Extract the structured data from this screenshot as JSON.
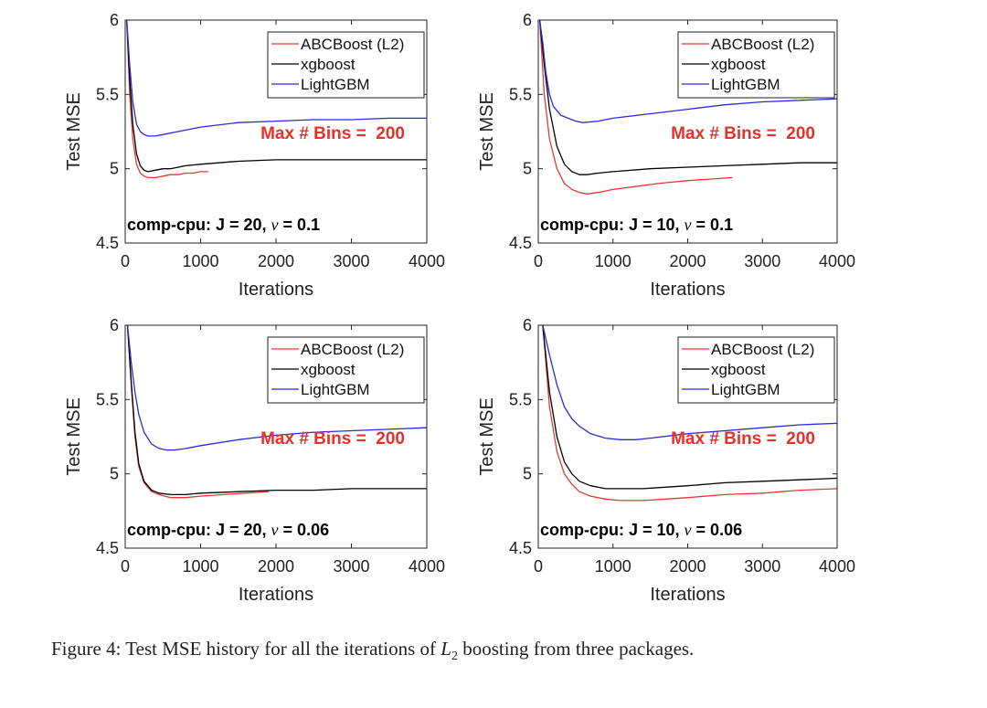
{
  "caption": {
    "label": "Figure 4:",
    "text_before": "Test MSE history for all the iterations of",
    "math_var": "L",
    "math_sub": "2",
    "text_after": "boosting from three packages."
  },
  "colors": {
    "abcboost": "#e03a35",
    "xgboost": "#000000",
    "lightgbm": "#2a2ad8",
    "annotation": "#e8312a"
  },
  "chart_data": [
    {
      "type": "line",
      "id": "top-left",
      "xlabel": "Iterations",
      "ylabel": "Test MSE",
      "xlim": [
        0,
        4000
      ],
      "ylim": [
        4.5,
        6
      ],
      "xticks": [
        0,
        1000,
        2000,
        3000,
        4000
      ],
      "yticks": [
        4.5,
        5,
        5.5,
        6
      ],
      "ytick_labels": [
        "4.5",
        "5",
        "5.5",
        "6"
      ],
      "legend": [
        "ABCBoost (L2)",
        "xgboost",
        "LightGBM"
      ],
      "bins_label": "Max # Bins =  200",
      "config_prefix": "comp-cpu: J = 20, ",
      "config_nu": "ν",
      "config_suffix": " = 0.1",
      "series": [
        {
          "name": "ABCBoost (L2)",
          "x": [
            20,
            60,
            100,
            150,
            200,
            250,
            300,
            400,
            500,
            600,
            700,
            800,
            900,
            1000,
            1100
          ],
          "y": [
            6.0,
            5.5,
            5.2,
            5.03,
            4.97,
            4.95,
            4.94,
            4.94,
            4.95,
            4.96,
            4.96,
            4.97,
            4.97,
            4.98,
            4.98
          ]
        },
        {
          "name": "xgboost",
          "x": [
            20,
            60,
            100,
            150,
            200,
            250,
            300,
            400,
            500,
            600,
            800,
            1000,
            1500,
            2000,
            2500,
            3000,
            3500,
            4000
          ],
          "y": [
            6.0,
            5.6,
            5.3,
            5.1,
            5.02,
            4.99,
            4.98,
            4.99,
            5.0,
            5.0,
            5.02,
            5.03,
            5.05,
            5.06,
            5.06,
            5.06,
            5.06,
            5.06
          ]
        },
        {
          "name": "LightGBM",
          "x": [
            20,
            60,
            100,
            150,
            200,
            250,
            300,
            400,
            500,
            700,
            1000,
            1500,
            2000,
            2500,
            3000,
            3500,
            4000
          ],
          "y": [
            6.0,
            5.7,
            5.45,
            5.3,
            5.25,
            5.23,
            5.22,
            5.22,
            5.23,
            5.25,
            5.28,
            5.31,
            5.32,
            5.33,
            5.33,
            5.34,
            5.34
          ]
        }
      ]
    },
    {
      "type": "line",
      "id": "top-right",
      "xlabel": "Iterations",
      "ylabel": "Test MSE",
      "xlim": [
        0,
        4000
      ],
      "ylim": [
        4.5,
        6
      ],
      "xticks": [
        0,
        1000,
        2000,
        3000,
        4000
      ],
      "yticks": [
        4.5,
        5,
        5.5,
        6
      ],
      "ytick_labels": [
        "4.5",
        "5",
        "5.5",
        "6"
      ],
      "legend": [
        "ABCBoost (L2)",
        "xgboost",
        "LightGBM"
      ],
      "bins_label": "Max # Bins =  200",
      "config_prefix": "comp-cpu: J = 10, ",
      "config_nu": "ν",
      "config_suffix": " = 0.1",
      "series": [
        {
          "name": "ABCBoost (L2)",
          "x": [
            20,
            80,
            150,
            250,
            350,
            450,
            550,
            650,
            800,
            1000,
            1300,
            1600,
            2000,
            2300,
            2600
          ],
          "y": [
            6.0,
            5.5,
            5.2,
            5.0,
            4.9,
            4.86,
            4.84,
            4.83,
            4.84,
            4.86,
            4.88,
            4.9,
            4.92,
            4.93,
            4.94
          ]
        },
        {
          "name": "xgboost",
          "x": [
            20,
            80,
            150,
            250,
            350,
            450,
            550,
            650,
            800,
            1000,
            1500,
            2000,
            2500,
            3000,
            3500,
            4000
          ],
          "y": [
            6.0,
            5.7,
            5.4,
            5.15,
            5.03,
            4.98,
            4.96,
            4.96,
            4.97,
            4.98,
            5.0,
            5.01,
            5.02,
            5.03,
            5.04,
            5.04
          ]
        },
        {
          "name": "LightGBM",
          "x": [
            20,
            60,
            100,
            150,
            200,
            300,
            400,
            500,
            600,
            800,
            1000,
            1500,
            2000,
            2500,
            3000,
            3500,
            4000
          ],
          "y": [
            6.0,
            5.85,
            5.65,
            5.5,
            5.42,
            5.36,
            5.34,
            5.32,
            5.31,
            5.32,
            5.34,
            5.37,
            5.4,
            5.43,
            5.45,
            5.46,
            5.47
          ]
        }
      ]
    },
    {
      "type": "line",
      "id": "bottom-left",
      "xlabel": "Iterations",
      "ylabel": "Test MSE",
      "xlim": [
        0,
        4000
      ],
      "ylim": [
        4.5,
        6
      ],
      "xticks": [
        0,
        1000,
        2000,
        3000,
        4000
      ],
      "yticks": [
        4.5,
        5,
        5.5,
        6
      ],
      "ytick_labels": [
        "4.5",
        "5",
        "5.5",
        "6"
      ],
      "legend": [
        "ABCBoost (L2)",
        "xgboost",
        "LightGBM"
      ],
      "bins_label": "Max # Bins =  200",
      "config_prefix": "comp-cpu: J = 20, ",
      "config_nu": "ν",
      "config_suffix": " = 0.06",
      "series": [
        {
          "name": "ABCBoost (L2)",
          "x": [
            30,
            80,
            130,
            180,
            250,
            350,
            450,
            600,
            800,
            1000,
            1300,
            1600,
            1900
          ],
          "y": [
            6.0,
            5.6,
            5.25,
            5.05,
            4.94,
            4.88,
            4.86,
            4.84,
            4.84,
            4.85,
            4.86,
            4.87,
            4.88
          ]
        },
        {
          "name": "xgboost",
          "x": [
            30,
            80,
            130,
            180,
            250,
            350,
            450,
            600,
            800,
            1000,
            1500,
            2000,
            2500,
            3000,
            3500,
            4000
          ],
          "y": [
            6.0,
            5.62,
            5.28,
            5.07,
            4.95,
            4.89,
            4.87,
            4.86,
            4.86,
            4.87,
            4.88,
            4.89,
            4.89,
            4.9,
            4.9,
            4.9
          ]
        },
        {
          "name": "LightGBM",
          "x": [
            30,
            80,
            130,
            180,
            250,
            350,
            450,
            550,
            650,
            800,
            1000,
            1500,
            2000,
            2500,
            3000,
            3500,
            4000
          ],
          "y": [
            6.0,
            5.75,
            5.55,
            5.4,
            5.28,
            5.2,
            5.17,
            5.16,
            5.16,
            5.17,
            5.19,
            5.23,
            5.26,
            5.28,
            5.29,
            5.3,
            5.31
          ]
        }
      ]
    },
    {
      "type": "line",
      "id": "bottom-right",
      "xlabel": "Iterations",
      "ylabel": "Test MSE",
      "xlim": [
        0,
        4000
      ],
      "ylim": [
        4.5,
        6
      ],
      "xticks": [
        0,
        1000,
        2000,
        3000,
        4000
      ],
      "yticks": [
        4.5,
        5,
        5.5,
        6
      ],
      "ytick_labels": [
        "4.5",
        "5",
        "5.5",
        "6"
      ],
      "legend": [
        "ABCBoost (L2)",
        "xgboost",
        "LightGBM"
      ],
      "bins_label": "Max # Bins =  200",
      "config_prefix": "comp-cpu: J = 10, ",
      "config_nu": "ν",
      "config_suffix": " = 0.06",
      "series": [
        {
          "name": "ABCBoost (L2)",
          "x": [
            60,
            150,
            250,
            350,
            450,
            550,
            700,
            900,
            1100,
            1400,
            1700,
            2000,
            2500,
            3000,
            3500,
            4000
          ],
          "y": [
            6.0,
            5.45,
            5.15,
            5.0,
            4.93,
            4.88,
            4.85,
            4.83,
            4.82,
            4.82,
            4.83,
            4.84,
            4.86,
            4.87,
            4.89,
            4.9
          ]
        },
        {
          "name": "xgboost",
          "x": [
            60,
            150,
            250,
            350,
            450,
            550,
            700,
            900,
            1100,
            1400,
            1700,
            2000,
            2500,
            3000,
            3500,
            4000
          ],
          "y": [
            6.0,
            5.55,
            5.25,
            5.08,
            5.0,
            4.95,
            4.92,
            4.9,
            4.9,
            4.9,
            4.91,
            4.92,
            4.94,
            4.95,
            4.96,
            4.97
          ]
        },
        {
          "name": "LightGBM",
          "x": [
            60,
            150,
            250,
            350,
            450,
            550,
            700,
            900,
            1100,
            1300,
            1500,
            2000,
            2500,
            3000,
            3500,
            4000
          ],
          "y": [
            6.0,
            5.8,
            5.6,
            5.45,
            5.37,
            5.32,
            5.27,
            5.24,
            5.23,
            5.23,
            5.24,
            5.27,
            5.29,
            5.31,
            5.33,
            5.34
          ]
        }
      ]
    }
  ]
}
